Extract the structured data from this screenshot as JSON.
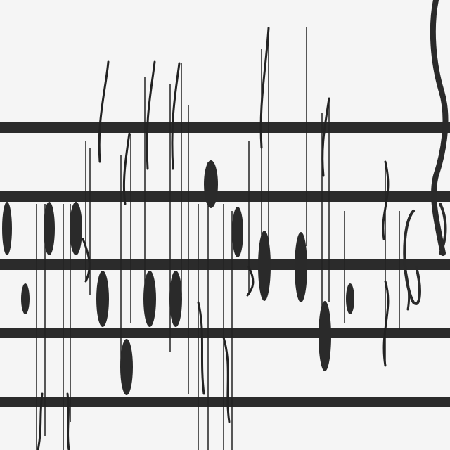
{
  "image": {
    "background_color": "#f5f5f5",
    "ink_color": "#2a2a2a",
    "visible_text": [],
    "depicted_objects": [
      "staff-lines",
      "music-notes",
      "treble-clef-fragment"
    ]
  }
}
